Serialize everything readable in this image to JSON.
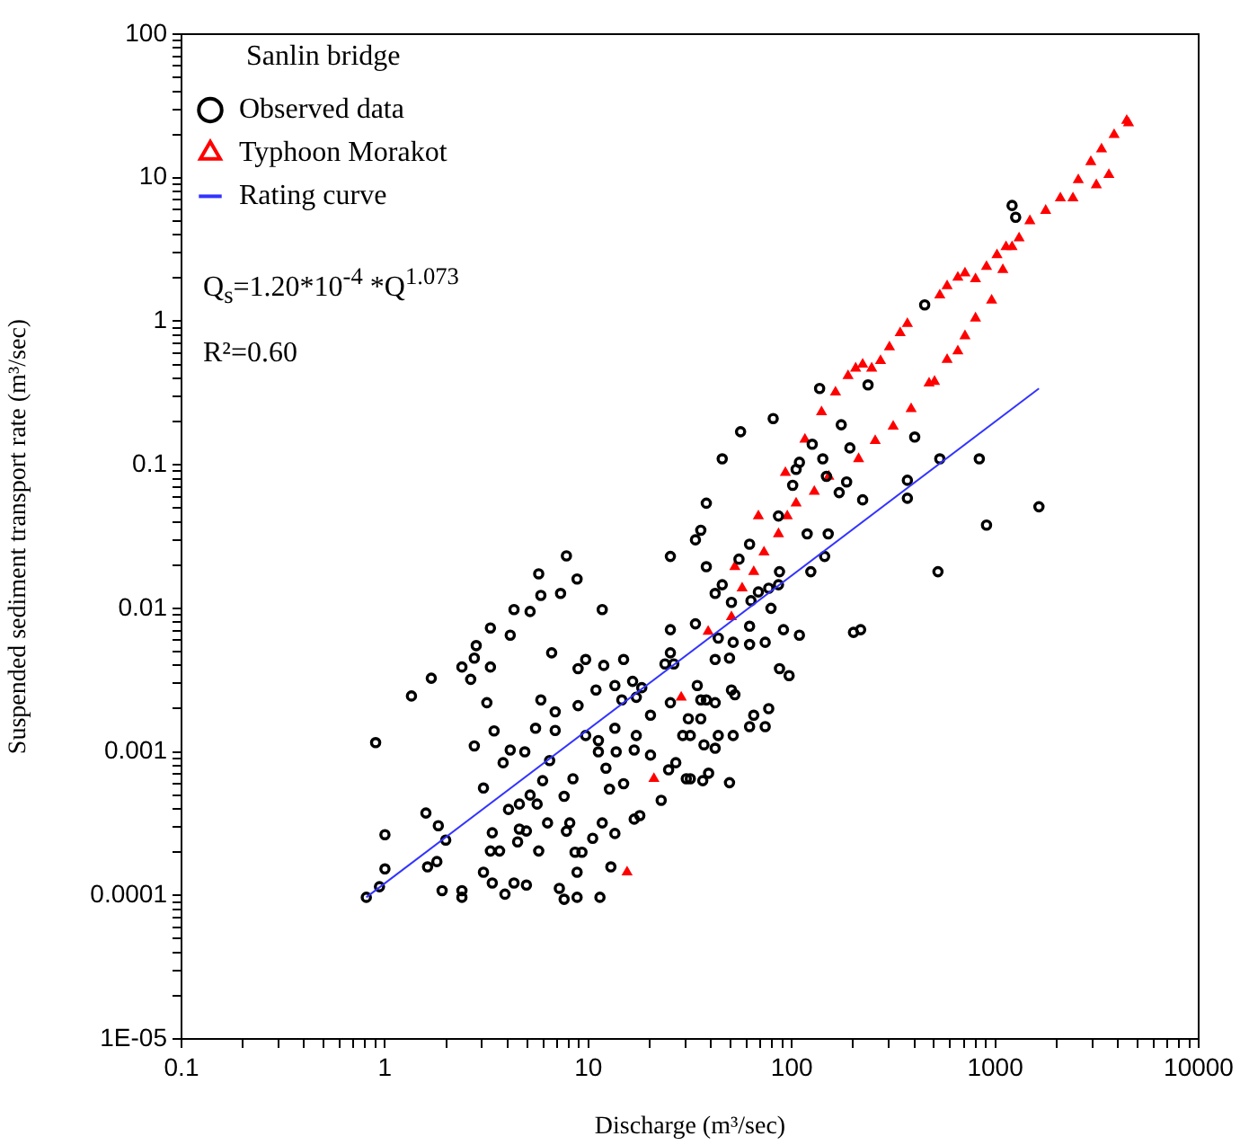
{
  "chart_data": {
    "type": "scatter",
    "xlabel": "Discharge (m³/sec)",
    "ylabel": "Suspended sediment transport rate (m³/sec)",
    "legend_title": "Sanlin bridge",
    "legend": "top left",
    "log": "xy",
    "grid": false,
    "xlim": [
      0.1,
      10000
    ],
    "ylim": [
      1e-05,
      100
    ],
    "xticks": [
      0.1,
      {
        "value": 0.2,
        "label": null
      },
      {
        "value": 0.3,
        "label": null
      },
      {
        "value": 0.4,
        "label": null
      },
      {
        "value": 0.5,
        "label": null
      },
      {
        "value": 0.6,
        "label": null
      },
      {
        "value": 0.7,
        "label": null
      },
      {
        "value": 0.8,
        "label": null
      },
      {
        "value": 0.9,
        "label": null
      },
      1,
      {
        "value": 2,
        "label": null
      },
      {
        "value": 3,
        "label": null
      },
      {
        "value": 4,
        "label": null
      },
      {
        "value": 5,
        "label": null
      },
      {
        "value": 6,
        "label": null
      },
      {
        "value": 7,
        "label": null
      },
      {
        "value": 8,
        "label": null
      },
      {
        "value": 9,
        "label": null
      },
      10,
      {
        "value": 20,
        "label": null
      },
      {
        "value": 30,
        "label": null
      },
      {
        "value": 40,
        "label": null
      },
      {
        "value": 50,
        "label": null
      },
      {
        "value": 60,
        "label": null
      },
      {
        "value": 70,
        "label": null
      },
      {
        "value": 80,
        "label": null
      },
      {
        "value": 90,
        "label": null
      },
      100,
      {
        "value": 200,
        "label": null
      },
      {
        "value": 300,
        "label": null
      },
      {
        "value": 400,
        "label": null
      },
      {
        "value": 500,
        "label": null
      },
      {
        "value": 600,
        "label": null
      },
      {
        "value": 700,
        "label": null
      },
      {
        "value": 800,
        "label": null
      },
      {
        "value": 900,
        "label": null
      },
      1000,
      {
        "value": 2000,
        "label": null
      },
      {
        "value": 3000,
        "label": null
      },
      {
        "value": 4000,
        "label": null
      },
      {
        "value": 5000,
        "label": null
      },
      {
        "value": 6000,
        "label": null
      },
      {
        "value": 7000,
        "label": null
      },
      {
        "value": 8000,
        "label": null
      },
      {
        "value": 9000,
        "label": null
      },
      10000
    ],
    "yticks": [
      {
        "value": 1e-05,
        "label": "1E-05"
      },
      {
        "value": 2e-05,
        "label": null
      },
      {
        "value": 3e-05,
        "label": null
      },
      {
        "value": 4e-05,
        "label": null
      },
      {
        "value": 5e-05,
        "label": null
      },
      {
        "value": 6e-05,
        "label": null
      },
      {
        "value": 7e-05,
        "label": null
      },
      {
        "value": 8e-05,
        "label": null
      },
      {
        "value": 9e-05,
        "label": null
      },
      0.0001,
      {
        "value": 0.0002,
        "label": null
      },
      {
        "value": 0.0003,
        "label": null
      },
      {
        "value": 0.0004,
        "label": null
      },
      {
        "value": 0.0005,
        "label": null
      },
      {
        "value": 0.0006,
        "label": null
      },
      {
        "value": 0.0007,
        "label": null
      },
      {
        "value": 0.0008,
        "label": null
      },
      {
        "value": 0.0009,
        "label": null
      },
      0.001,
      {
        "value": 0.002,
        "label": null
      },
      {
        "value": 0.003,
        "label": null
      },
      {
        "value": 0.004,
        "label": null
      },
      {
        "value": 0.005,
        "label": null
      },
      {
        "value": 0.006,
        "label": null
      },
      {
        "value": 0.007,
        "label": null
      },
      {
        "value": 0.008,
        "label": null
      },
      {
        "value": 0.009,
        "label": null
      },
      0.01,
      {
        "value": 0.02,
        "label": null
      },
      {
        "value": 0.03,
        "label": null
      },
      {
        "value": 0.04,
        "label": null
      },
      {
        "value": 0.05,
        "label": null
      },
      {
        "value": 0.06,
        "label": null
      },
      {
        "value": 0.07,
        "label": null
      },
      {
        "value": 0.08,
        "label": null
      },
      {
        "value": 0.09,
        "label": null
      },
      0.1,
      {
        "value": 0.2,
        "label": null
      },
      {
        "value": 0.3,
        "label": null
      },
      {
        "value": 0.4,
        "label": null
      },
      {
        "value": 0.5,
        "label": null
      },
      {
        "value": 0.6,
        "label": null
      },
      {
        "value": 0.7,
        "label": null
      },
      {
        "value": 0.8,
        "label": null
      },
      {
        "value": 0.9,
        "label": null
      },
      1,
      {
        "value": 2,
        "label": null
      },
      {
        "value": 3,
        "label": null
      },
      {
        "value": 4,
        "label": null
      },
      {
        "value": 5,
        "label": null
      },
      {
        "value": 6,
        "label": null
      },
      {
        "value": 7,
        "label": null
      },
      {
        "value": 8,
        "label": null
      },
      {
        "value": 9,
        "label": null
      },
      10,
      {
        "value": 20,
        "label": null
      },
      {
        "value": 30,
        "label": null
      },
      {
        "value": 40,
        "label": null
      },
      {
        "value": 50,
        "label": null
      },
      {
        "value": 60,
        "label": null
      },
      {
        "value": 70,
        "label": null
      },
      {
        "value": 80,
        "label": null
      },
      {
        "value": 90,
        "label": null
      },
      100
    ],
    "annotations": [
      "Q$_{s}$=1.20*10$^{-4}$ *Q$^{1.073}$",
      "R²=0.60"
    ],
    "series": [
      {
        "name": "Observed data",
        "marker": "circle",
        "color": "#000000",
        "x": [
          0.81,
          0.94,
          1.0,
          1.0,
          0.9,
          1.35,
          1.69,
          1.59,
          1.83,
          1.99,
          1.8,
          1.62,
          1.91,
          2.39,
          2.39,
          3.05,
          3.3,
          2.81,
          2.39,
          2.64,
          3.3,
          2.75,
          3.17,
          2.75,
          3.44,
          3.05,
          3.37,
          3.3,
          3.66,
          3.37,
          3.89,
          4.31,
          4.05,
          4.58,
          3.81,
          4.13,
          4.87,
          5.5,
          6.87,
          6.45,
          5.96,
          5.17,
          4.96,
          4.58,
          4.49,
          5.7,
          4.96,
          5.6,
          4.31,
          4.13,
          5.17,
          5.84,
          5.7,
          7.3,
          8.8,
          7.8,
          6.6,
          5.84,
          6.87,
          8.9,
          9.7,
          10.9,
          11.2,
          11.7,
          11.9,
          9.7,
          8.9,
          14.9,
          13.5,
          14.6,
          13.5,
          17.2,
          16.5,
          18.3,
          20.2,
          17.2,
          16.8,
          13.7,
          11.2,
          12.2,
          12.7,
          14.9,
          8.4,
          7.6,
          8.1,
          6.3,
          7.8,
          8.6,
          9.3,
          11.7,
          10.5,
          13.5,
          8.8,
          8.8,
          7.6,
          7.2,
          11.4,
          12.9,
          16.8,
          17.9,
          22.8,
          20.2,
          24.8,
          26.9,
          30.3,
          36.5,
          29.1,
          31,
          35.7,
          25.3,
          23.8,
          25.3,
          26.3,
          25.3,
          33.6,
          35.7,
          38,
          25.3,
          42,
          42,
          42,
          137,
          81,
          56,
          45.5,
          109,
          126,
          175,
          237,
          193,
          142,
          105,
          101,
          148,
          186,
          171,
          223,
          402,
          534,
          835,
          370,
          370,
          1640,
          906,
          523,
          38,
          55,
          62,
          86,
          119,
          151,
          145,
          124,
          87,
          86,
          77,
          79,
          68.5,
          63,
          45.5,
          50.5,
          62,
          74,
          109,
          91,
          201,
          218,
          33.6,
          51.5,
          62,
          43.5,
          49.4,
          87,
          97,
          34.3,
          38,
          50.5,
          52.5,
          77,
          65,
          62,
          74,
          51.5,
          43.5,
          42,
          37,
          35.7,
          31.7,
          39,
          49.4,
          31.7,
          1210,
          1260,
          450
        ],
        "values": [
          9.7e-05,
          0.000115,
          0.000153,
          0.000265,
          0.00116,
          0.00245,
          0.00326,
          0.000375,
          0.000306,
          0.000243,
          0.000172,
          0.000158,
          0.000108,
          0.000108,
          9.7e-05,
          0.000145,
          0.0073,
          0.0055,
          0.0039,
          0.0032,
          0.0039,
          0.0045,
          0.0022,
          0.0011,
          0.0014,
          0.00056,
          0.000273,
          0.000204,
          0.000204,
          0.000122,
          0.000102,
          0.000122,
          0.000397,
          0.000433,
          0.00084,
          0.00103,
          0.001,
          0.00146,
          0.00141,
          0.00087,
          0.00063,
          0.0005,
          0.000281,
          0.00029,
          0.000236,
          0.000204,
          0.000118,
          0.000433,
          0.0098,
          0.0065,
          0.0095,
          0.0123,
          0.0174,
          0.0127,
          0.016,
          0.0232,
          0.0049,
          0.0023,
          0.0019,
          0.0021,
          0.0013,
          0.0027,
          0.0012,
          0.0098,
          0.004,
          0.0044,
          0.0038,
          0.0044,
          0.0029,
          0.0023,
          0.00146,
          0.0024,
          0.0031,
          0.0028,
          0.0018,
          0.0013,
          0.00103,
          0.001,
          0.001,
          0.00077,
          0.00055,
          0.0006,
          0.00065,
          0.00049,
          0.00032,
          0.00032,
          0.00028,
          0.0002,
          0.0002,
          0.00032,
          0.00025,
          0.00027,
          0.000145,
          9.7e-05,
          9.4e-05,
          0.000112,
          9.7e-05,
          0.000158,
          0.00034,
          0.00036,
          0.00046,
          0.00095,
          0.00075,
          0.00084,
          0.00065,
          0.00063,
          0.0013,
          0.0017,
          0.0023,
          0.0022,
          0.0041,
          0.0049,
          0.0041,
          0.0071,
          0.03,
          0.035,
          0.0195,
          0.023,
          0.0127,
          0.0044,
          0.0022,
          0.34,
          0.21,
          0.17,
          0.11,
          0.104,
          0.139,
          0.19,
          0.36,
          0.131,
          0.11,
          0.093,
          0.072,
          0.083,
          0.076,
          0.064,
          0.057,
          0.156,
          0.11,
          0.11,
          0.078,
          0.0585,
          0.051,
          0.038,
          0.018,
          0.054,
          0.022,
          0.028,
          0.044,
          0.033,
          0.033,
          0.023,
          0.018,
          0.018,
          0.0146,
          0.0138,
          0.01,
          0.013,
          0.0113,
          0.0146,
          0.011,
          0.0075,
          0.0058,
          0.0065,
          0.0071,
          0.0068,
          0.0071,
          0.0078,
          0.0058,
          0.0056,
          0.0062,
          0.0045,
          0.0038,
          0.0034,
          0.0029,
          0.0023,
          0.0027,
          0.0025,
          0.002,
          0.0018,
          0.0015,
          0.0015,
          0.0013,
          0.0013,
          0.00106,
          0.00112,
          0.0017,
          0.0013,
          0.00071,
          0.00061,
          0.00065,
          6.4,
          5.3,
          1.3
        ]
      },
      {
        "name": "Typhoon Morakot",
        "marker": "triangle",
        "color": "#ff0000",
        "x": [
          38.8,
          28.6,
          21,
          15.5,
          52.5,
          68.5,
          93,
          116,
          140,
          164,
          189,
          206,
          223,
          247,
          273,
          302,
          341,
          370,
          534,
          580,
          655,
          710,
          800,
          906,
          1020,
          1130,
          1310,
          50.5,
          57,
          65,
          73,
          86,
          95,
          105,
          129,
          152,
          213,
          257,
          315,
          386,
          473,
          503,
          580,
          655,
          710,
          800,
          960,
          1090,
          1210,
          1480,
          1770,
          2090,
          2410,
          2560,
          2950,
          3140,
          3330,
          3620,
          3840,
          4430,
          4520
        ],
        "values": [
          0.0069,
          0.0024,
          0.00065,
          0.000145,
          0.0195,
          0.044,
          0.088,
          0.15,
          0.233,
          0.32,
          0.416,
          0.47,
          0.5,
          0.47,
          0.53,
          0.66,
          0.83,
          0.96,
          1.52,
          1.76,
          2.02,
          2.16,
          1.97,
          2.4,
          2.9,
          3.3,
          3.8,
          0.0087,
          0.0138,
          0.018,
          0.0246,
          0.033,
          0.044,
          0.054,
          0.065,
          0.083,
          0.11,
          0.147,
          0.185,
          0.245,
          0.37,
          0.38,
          0.54,
          0.62,
          0.79,
          1.05,
          1.4,
          2.28,
          3.3,
          5.0,
          5.9,
          7.2,
          7.2,
          9.65,
          12.9,
          8.9,
          15.8,
          10.5,
          19.9,
          25,
          24
        ]
      },
      {
        "name": "Rating curve",
        "type": "line",
        "marker": "none",
        "line_style": "solid",
        "color": "#3333ff",
        "x": [
          0.81,
          1640
        ],
        "values": [
          9.7e-05,
          0.34
        ]
      }
    ]
  }
}
